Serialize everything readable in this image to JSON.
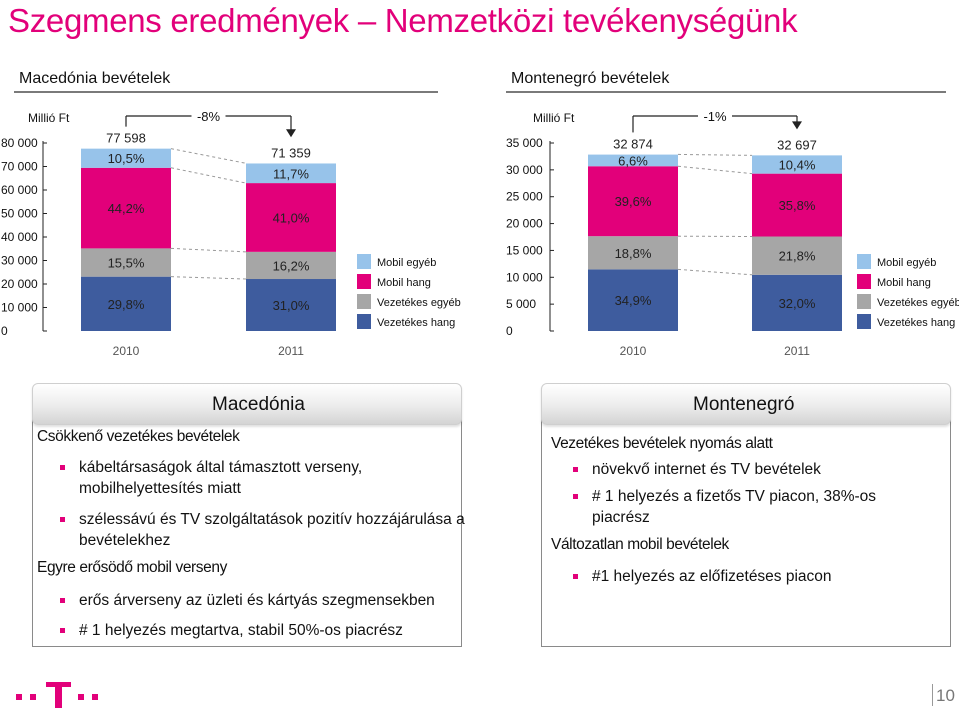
{
  "title": "Szegmens eredmények – Nemzetközi tevékenységünk",
  "colors": {
    "accent": "#e2007a",
    "mobil_egyeb": "#97c3ea",
    "mobil_hang": "#e2007a",
    "vezetekes_egyeb": "#a6a6a6",
    "vezetekes_hang": "#3e5c9e"
  },
  "chart_data": [
    {
      "type": "bar",
      "title": "Macedónia bevételek",
      "unit_label": "Millió Ft",
      "categories": [
        "2010",
        "2011"
      ],
      "totals": [
        "77 598",
        "71 359"
      ],
      "total_values": [
        77598,
        71359
      ],
      "change_label": "-8%",
      "yticks": [
        "80 000",
        "70 000",
        "60 000",
        "50 000",
        "40 000",
        "30 000",
        "20 000",
        "10 000",
        "0"
      ],
      "ylim": [
        0,
        80000
      ],
      "legend": [
        "Mobil egyéb",
        "Mobil hang",
        "Vezetékes egyéb",
        "Vezetékes hang"
      ],
      "series": [
        {
          "name": "Vezetékes hang",
          "shares": [
            29.8,
            31.0
          ],
          "labels": [
            "29,8%",
            "31,0%"
          ]
        },
        {
          "name": "Vezetékes egyéb",
          "shares": [
            15.5,
            16.2
          ],
          "labels": [
            "15,5%",
            "16,2%"
          ]
        },
        {
          "name": "Mobil hang",
          "shares": [
            44.2,
            41.0
          ],
          "labels": [
            "44,2%",
            "41,0%"
          ]
        },
        {
          "name": "Mobil egyéb",
          "shares": [
            10.5,
            11.7
          ],
          "labels": [
            "10,5%",
            "11,7%"
          ]
        }
      ]
    },
    {
      "type": "bar",
      "title": "Montenegró bevételek",
      "unit_label": "Millió Ft",
      "categories": [
        "2010",
        "2011"
      ],
      "totals": [
        "32 874",
        "32 697"
      ],
      "total_values": [
        32874,
        32697
      ],
      "change_label": "-1%",
      "yticks": [
        "35 000",
        "30 000",
        "25 000",
        "20 000",
        "15 000",
        "10 000",
        "5 000",
        "0"
      ],
      "ylim": [
        0,
        35000
      ],
      "legend": [
        "Mobil egyéb",
        "Mobil hang",
        "Vezetékes egyéb",
        "Vezetékes hang"
      ],
      "series": [
        {
          "name": "Vezetékes hang",
          "shares": [
            34.9,
            32.0
          ],
          "labels": [
            "34,9%",
            "32,0%"
          ]
        },
        {
          "name": "Vezetékes egyéb",
          "shares": [
            18.8,
            21.8
          ],
          "labels": [
            "18,8%",
            "21,8%"
          ]
        },
        {
          "name": "Mobil hang",
          "shares": [
            39.6,
            35.8
          ],
          "labels": [
            "39,6%",
            "35,8%"
          ]
        },
        {
          "name": "Mobil egyéb",
          "shares": [
            6.6,
            10.4
          ],
          "labels": [
            "6,6%",
            "10,4%"
          ]
        }
      ]
    }
  ],
  "macedonia": {
    "title": "Macedónia",
    "heading1": "Csökkenő vezetékes bevételek",
    "b1_line1": "kábeltársaságok által támasztott verseny,",
    "b1_line2": "mobilhelyettesítés miatt",
    "b2_line1": "szélessávú és TV szolgáltatások pozitív hozzájárulása a",
    "b2_line2": "bevételekhez",
    "heading2": "Egyre erősödő mobil verseny",
    "b3": "erős árverseny az üzleti és kártyás szegmensekben",
    "b4": "# 1 helyezés megtartva, stabil 50%-os piacrész"
  },
  "montenegro": {
    "title": "Montenegró",
    "heading1": "Vezetékes bevételek nyomás alatt",
    "b1": "növekvő internet és TV bevételek",
    "b2_line1": "# 1 helyezés a fizetős TV piacon,  38%-os",
    "b2_line2": "piacrész",
    "heading2": "Változatlan mobil bevételek",
    "b3": "#1 helyezés az előfizetéses piacon"
  },
  "page_number": "10"
}
